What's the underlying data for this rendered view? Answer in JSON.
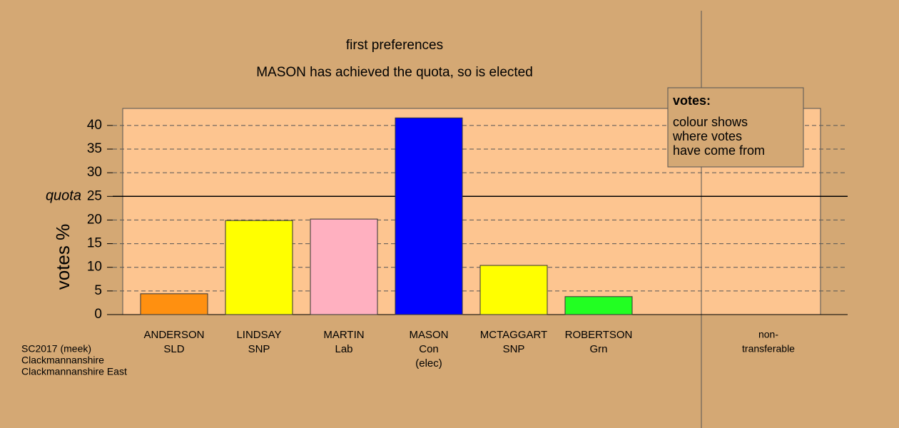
{
  "chart_data": {
    "type": "bar",
    "title": "first preferences",
    "subtitle": "MASON has achieved the quota, so is elected",
    "y_label": "votes %",
    "categories": [
      "ANDERSON",
      "LINDSAY",
      "MARTIN",
      "MASON",
      "MCTAGGART",
      "ROBERTSON",
      "non-"
    ],
    "parties": [
      "SLD",
      "SNP",
      "Lab",
      "Con",
      "SNP",
      "Grn",
      "transferable"
    ],
    "notes": [
      null,
      null,
      null,
      "(elec)",
      null,
      null,
      null
    ],
    "values": [
      4.4,
      19.9,
      20.2,
      41.6,
      10.4,
      3.8,
      0
    ],
    "colors": [
      "#ff9010",
      "#ffff00",
      "#ffb0c0",
      "#0000ff",
      "#ffff00",
      "#22ff22",
      "#d4a874"
    ],
    "ylim": [
      0,
      43.6
    ],
    "yticks": [
      0,
      5,
      10,
      15,
      20,
      25,
      30,
      35,
      40
    ],
    "grid": true,
    "quota": {
      "value": 25,
      "label": "quota"
    },
    "legend": {
      "title": "votes:",
      "lines": [
        "colour shows",
        "where votes",
        "have come from"
      ]
    },
    "footnote": [
      "SC2017 (meek)",
      "Clackmannanshire",
      "Clackmannanshire East"
    ]
  }
}
